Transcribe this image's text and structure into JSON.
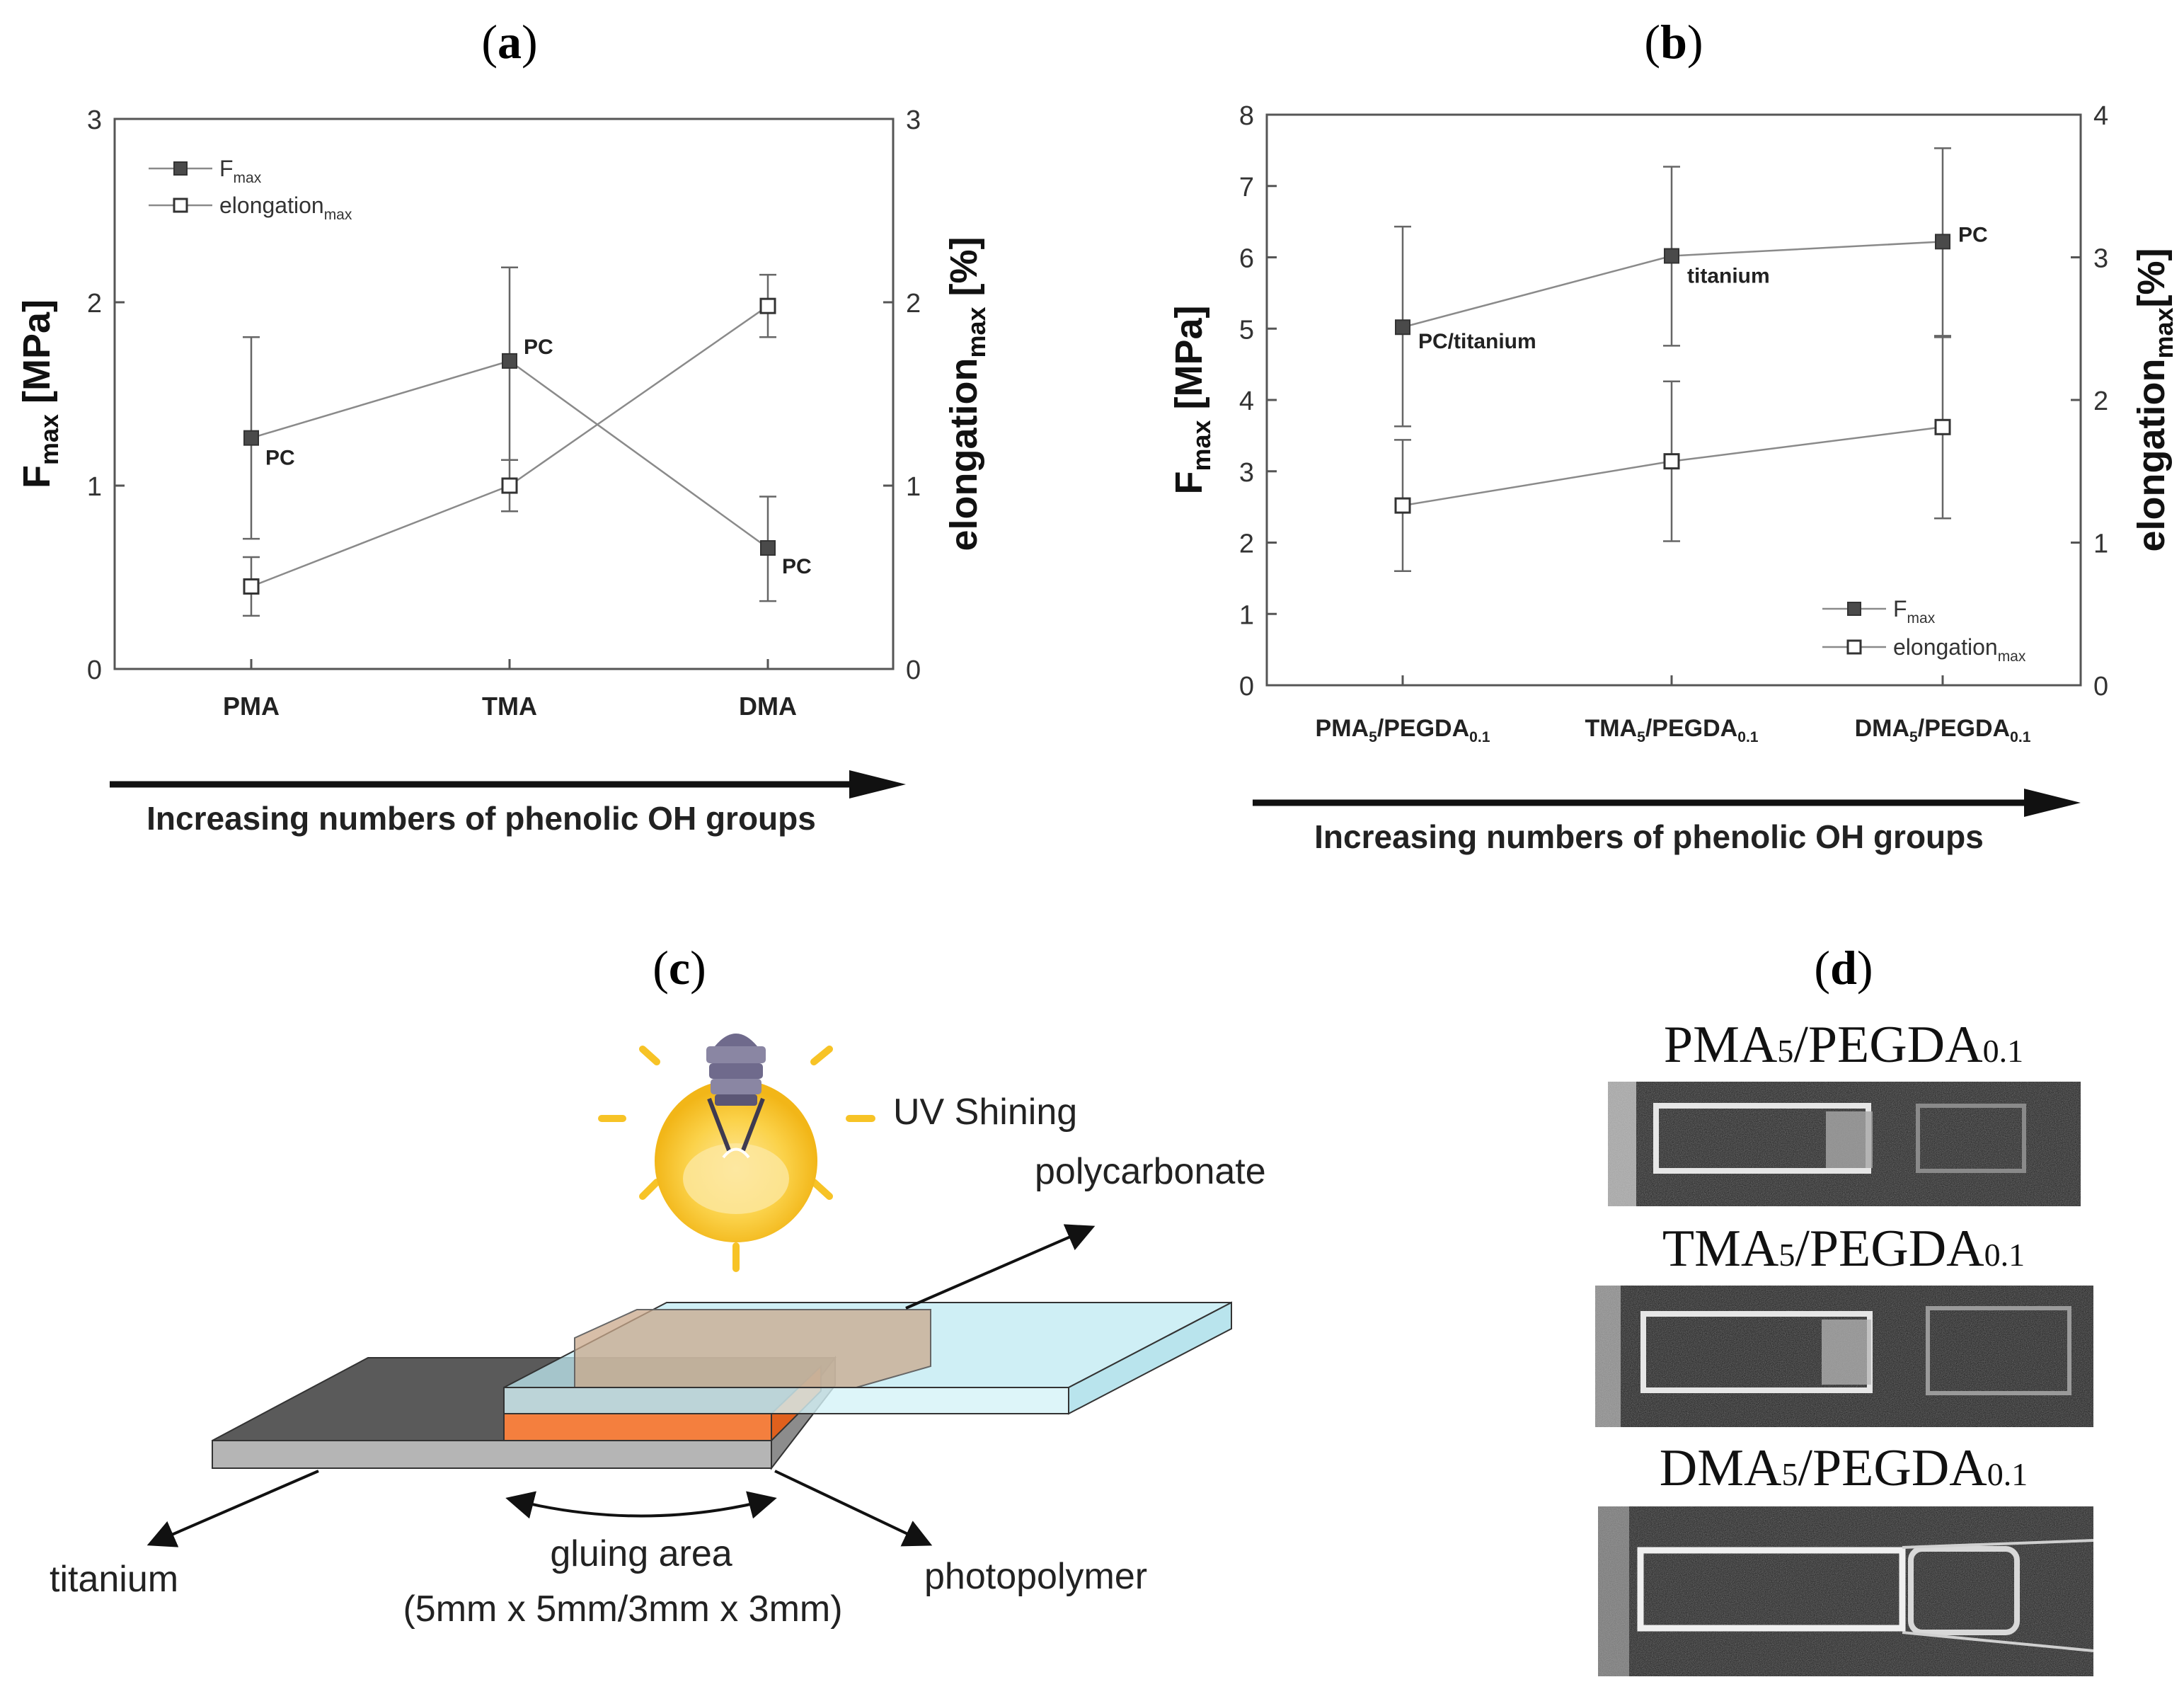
{
  "panel_labels": {
    "a": "a",
    "b": "b",
    "c": "c",
    "d": "d"
  },
  "chart_data": [
    {
      "id": "a",
      "type": "line",
      "title": "(a)",
      "categories": [
        "PMA",
        "TMA",
        "DMA"
      ],
      "ylabel_left_main": "F",
      "ylabel_left_sub": "max",
      "ylabel_left_rest": " [MPa]",
      "ylabel_right_main": "elongation",
      "ylabel_right_sub": "max",
      "ylabel_right_rest": " [%]",
      "ylim_left": [
        0,
        3
      ],
      "ylim_right": [
        0,
        3
      ],
      "yticks_left": [
        0,
        1,
        2,
        3
      ],
      "yticks_right": [
        0,
        1,
        2,
        3
      ],
      "legend": {
        "position": "top-left",
        "items": [
          {
            "main": "F",
            "sub": "max",
            "marker": "filled"
          },
          {
            "main": "elongation",
            "sub": "max",
            "marker": "open"
          }
        ]
      },
      "series": [
        {
          "name": "Fmax",
          "axis": "left",
          "marker": "filled",
          "values": [
            1.26,
            1.68,
            0.66
          ],
          "err_low": [
            0.71,
            1.14,
            0.37
          ],
          "err_high": [
            1.81,
            2.19,
            0.94
          ],
          "labels": [
            "PC",
            "PC",
            "PC"
          ]
        },
        {
          "name": "elongation_max",
          "axis": "right",
          "marker": "open",
          "values": [
            0.45,
            1.0,
            1.98
          ],
          "err_low": [
            0.29,
            0.86,
            1.81
          ],
          "err_high": [
            0.61,
            1.14,
            2.15
          ],
          "labels": [
            "",
            "",
            ""
          ]
        }
      ],
      "arrow_label": "Increasing numbers of phenolic OH groups"
    },
    {
      "id": "b",
      "type": "line",
      "title": "(b)",
      "categories": [
        {
          "a": "PMA",
          "s1": "5",
          "b": "/PEGDA",
          "s2": "0.1"
        },
        {
          "a": "TMA",
          "s1": "5",
          "b": "/PEGDA",
          "s2": "0.1"
        },
        {
          "a": "DMA",
          "s1": "5",
          "b": "/PEGDA",
          "s2": "0.1"
        }
      ],
      "ylabel_left_main": "F",
      "ylabel_left_sub": "max",
      "ylabel_left_rest": " [MPa]",
      "ylabel_right_main": "elongation",
      "ylabel_right_sub": "max",
      "ylabel_right_rest": "[%]",
      "ylim_left": [
        0,
        8
      ],
      "ylim_right": [
        0,
        4
      ],
      "yticks_left": [
        0,
        1,
        2,
        3,
        4,
        5,
        6,
        7,
        8
      ],
      "yticks_right": [
        0,
        1,
        2,
        3,
        4
      ],
      "legend": {
        "position": "bottom-right",
        "items": [
          {
            "main": "F",
            "sub": "max",
            "marker": "filled"
          },
          {
            "main": "elongation",
            "sub": "max",
            "marker": "open"
          }
        ]
      },
      "series": [
        {
          "name": "Fmax",
          "axis": "left",
          "marker": "filled",
          "values": [
            5.02,
            6.02,
            6.22
          ],
          "err_low": [
            3.63,
            4.76,
            4.88
          ],
          "err_high": [
            6.43,
            7.27,
            7.53
          ],
          "labels": [
            "PC/titanium",
            "titanium",
            "PC"
          ]
        },
        {
          "name": "elongation_max",
          "axis": "right",
          "marker": "open",
          "values": [
            1.26,
            1.57,
            1.81
          ],
          "err_low": [
            0.8,
            1.01,
            1.17
          ],
          "err_high": [
            1.72,
            2.13,
            2.45
          ],
          "labels": [
            "",
            "",
            ""
          ]
        }
      ],
      "arrow_label": "Increasing numbers of phenolic OH groups"
    }
  ],
  "panel_c": {
    "title": "(c)",
    "uv_label": "UV Shining",
    "polycarbonate_label": "polycarbonate",
    "titanium_label": "titanium",
    "photopolymer_label": "photopolymer",
    "gluing_line1": "gluing area",
    "gluing_line2": "(5mm x 5mm/3mm x 3mm)",
    "colors": {
      "titanium_top": "#5a5a5a",
      "titanium_side": "#b5b5b5",
      "glass": "#cdeef5",
      "photopolymer": "#f47f3e",
      "bulb": "#f7c326"
    }
  },
  "panel_d": {
    "title": "(d)",
    "samples": [
      {
        "a": "PMA",
        "s1": "5",
        "b": "/PEGDA",
        "s2": "0.1"
      },
      {
        "a": "TMA",
        "s1": "5",
        "b": "/PEGDA",
        "s2": "0.1"
      },
      {
        "a": "DMA",
        "s1": "5",
        "b": "/PEGDA",
        "s2": "0.1"
      }
    ]
  }
}
